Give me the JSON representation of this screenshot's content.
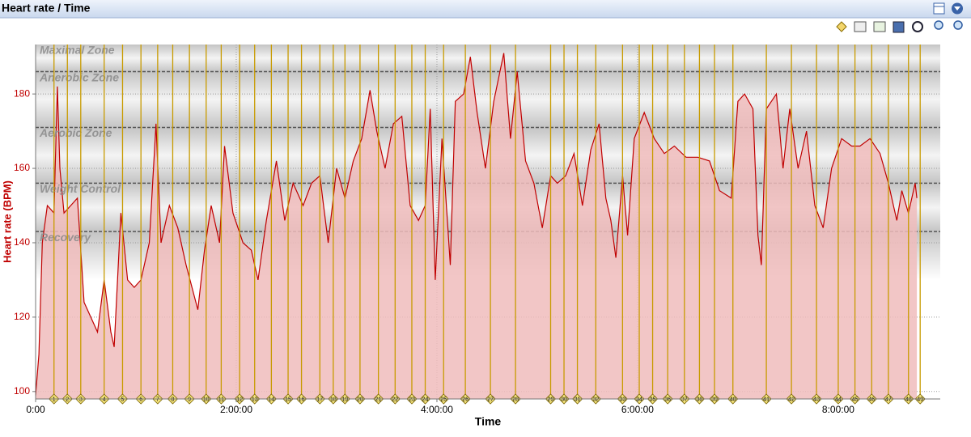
{
  "header": {
    "title": "Heart rate / Time"
  },
  "chart_data": {
    "type": "area",
    "xlabel": "Time",
    "ylabel": "Heart rate (BPM)",
    "xlim": [
      0,
      541
    ],
    "ylim": [
      98,
      193.3
    ],
    "xticks": [
      {
        "value": 0,
        "label": "0:00"
      },
      {
        "value": 120,
        "label": "2:00:00"
      },
      {
        "value": 240,
        "label": "4:00:00"
      },
      {
        "value": 360,
        "label": "6:00:00"
      },
      {
        "value": 480,
        "label": "8:00:00"
      }
    ],
    "yticks": [
      100,
      120,
      140,
      160,
      180
    ],
    "grid": true,
    "zones": [
      {
        "name": "Maximal Zone",
        "from": 186,
        "to": 193.3
      },
      {
        "name": "Anerobic Zone",
        "from": 171,
        "to": 186
      },
      {
        "name": "Aerobic Zone",
        "from": 156,
        "to": 171
      },
      {
        "name": "Weight Control",
        "from": 143,
        "to": 156
      },
      {
        "name": "Recovery",
        "from": 130,
        "to": 143
      }
    ],
    "laps": {
      "labels": [
        1,
        2,
        3,
        4,
        5,
        6,
        7,
        8,
        9,
        10,
        11,
        12,
        13,
        14,
        15,
        16,
        17,
        18,
        19,
        20,
        21,
        22,
        23,
        24,
        25,
        26,
        27,
        28,
        29,
        30,
        31,
        32,
        33,
        34,
        35,
        36,
        37,
        38,
        39,
        40,
        41,
        42,
        43,
        44,
        45,
        46,
        47,
        48,
        49
      ],
      "x": [
        11,
        19,
        27,
        41,
        52,
        63,
        73,
        82,
        92,
        102,
        111,
        122,
        131,
        141,
        151,
        159,
        170,
        178,
        185,
        194,
        205,
        215,
        225,
        233,
        244,
        257,
        272,
        287,
        308,
        316,
        324,
        335,
        351,
        361,
        369,
        378,
        388,
        397,
        406,
        417,
        437,
        452,
        467,
        480,
        490,
        500,
        510,
        522,
        529
      ],
      "color": "#c89b00"
    },
    "series": [
      {
        "name": "Heart rate",
        "color": "#c00000",
        "fill": "#f0bcbc",
        "x": [
          0,
          2,
          4,
          7,
          11,
          13,
          14.5,
          17,
          21,
          25,
          29,
          33,
          37,
          41,
          45,
          47,
          51,
          55,
          59,
          63,
          68,
          72,
          75,
          80,
          85,
          90,
          97,
          101,
          105,
          110,
          113,
          118,
          124,
          129,
          133,
          138,
          144,
          149,
          154,
          160,
          165,
          170,
          175,
          180,
          185,
          190,
          195,
          200,
          204,
          209,
          214,
          219,
          224,
          229,
          233,
          236,
          239,
          243,
          248,
          251,
          256,
          260,
          264,
          269,
          274,
          280,
          284,
          288,
          293,
          298,
          303,
          308,
          312,
          317,
          322,
          327,
          332,
          337,
          341,
          344,
          347,
          351,
          354,
          358,
          364,
          370,
          376,
          382,
          389,
          396,
          403,
          409,
          416,
          420,
          424,
          429,
          432,
          434,
          437,
          443,
          447,
          451,
          456,
          461,
          466,
          471,
          476,
          482,
          488,
          493,
          499,
          505,
          510,
          515,
          518,
          522,
          526,
          527
        ],
        "values": [
          99,
          110,
          140,
          150,
          148,
          182,
          160,
          148,
          150,
          152,
          124,
          120,
          116,
          130,
          116,
          112,
          148,
          130,
          128,
          130,
          140,
          172,
          140,
          150,
          144,
          134,
          122,
          138,
          150,
          140,
          166,
          148,
          140,
          138,
          130,
          146,
          162,
          146,
          156,
          150,
          156,
          158,
          140,
          160,
          152,
          162,
          168,
          181,
          170,
          160,
          172,
          174,
          150,
          146,
          150,
          176,
          130,
          168,
          134,
          178,
          180,
          190,
          175,
          160,
          178,
          191,
          168,
          186,
          162,
          156,
          144,
          158,
          156,
          158,
          164,
          150,
          165,
          172,
          152,
          146,
          136,
          158,
          142,
          168,
          175,
          168,
          164,
          166,
          163,
          163,
          162,
          154,
          152,
          178,
          180,
          176,
          142,
          134,
          176,
          180,
          160,
          176,
          160,
          170,
          150,
          144,
          160,
          168,
          166,
          166,
          168,
          164,
          156,
          146,
          154,
          148,
          156,
          152
        ]
      }
    ]
  }
}
